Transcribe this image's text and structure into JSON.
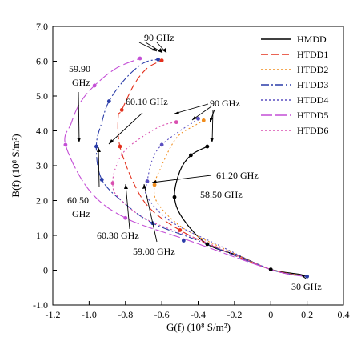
{
  "chart_data": {
    "type": "line",
    "xlabel": "G(f) (10⁸ S/m²)",
    "ylabel": "B(f) (10⁸ S/m²)",
    "xlim": [
      -1.2,
      0.4
    ],
    "ylim": [
      -1.0,
      7.0
    ],
    "xticks": [
      "-1.2",
      "-1.0",
      "-0.8",
      "-0.6",
      "-0.4",
      "-0.2",
      "0",
      "0.2",
      "0.4"
    ],
    "yticks": [
      "-1.0",
      "0",
      "1.0",
      "2.0",
      "3.0",
      "4.0",
      "5.0",
      "6.0",
      "7.0"
    ],
    "grid": false,
    "legend_position": "top-right",
    "series": [
      {
        "name": "HMDD",
        "color": "#000000",
        "dash": "solid",
        "points": [
          [
            0.2,
            -0.18
          ],
          [
            0.16,
            -0.12
          ],
          [
            0.0,
            0.02
          ],
          [
            -0.18,
            0.42
          ],
          [
            -0.35,
            0.75
          ],
          [
            -0.48,
            1.45
          ],
          [
            -0.53,
            2.1
          ],
          [
            -0.5,
            2.85
          ],
          [
            -0.44,
            3.3
          ],
          [
            -0.35,
            3.55
          ]
        ]
      },
      {
        "name": "HTDD1",
        "color": "#e3301c",
        "dash": "dashed",
        "points": [
          [
            0.2,
            -0.18
          ],
          [
            0.0,
            0.02
          ],
          [
            -0.3,
            0.65
          ],
          [
            -0.5,
            1.15
          ],
          [
            -0.66,
            1.75
          ],
          [
            -0.75,
            2.45
          ],
          [
            -0.83,
            3.55
          ],
          [
            -0.84,
            4.4
          ],
          [
            -0.82,
            4.6
          ],
          [
            -0.75,
            5.35
          ],
          [
            -0.68,
            5.8
          ],
          [
            -0.6,
            6.02
          ]
        ]
      },
      {
        "name": "HTDD2",
        "color": "#f08c1c",
        "dash": "dotted",
        "points": [
          [
            0.2,
            -0.17
          ],
          [
            0.0,
            0.02
          ],
          [
            -0.25,
            0.6
          ],
          [
            -0.48,
            1.2
          ],
          [
            -0.62,
            1.9
          ],
          [
            -0.64,
            2.45
          ],
          [
            -0.6,
            3.0
          ],
          [
            -0.55,
            3.55
          ],
          [
            -0.5,
            3.9
          ],
          [
            -0.42,
            4.15
          ],
          [
            -0.37,
            4.3
          ]
        ]
      },
      {
        "name": "HTDD3",
        "color": "#2a3ca8",
        "dash": "dashdot",
        "points": [
          [
            0.19,
            -0.18
          ],
          [
            0.0,
            0.02
          ],
          [
            -0.4,
            0.85
          ],
          [
            -0.65,
            1.35
          ],
          [
            -0.8,
            1.9
          ],
          [
            -0.93,
            2.6
          ],
          [
            -0.96,
            3.55
          ],
          [
            -0.93,
            4.25
          ],
          [
            -0.89,
            4.85
          ],
          [
            -0.8,
            5.5
          ],
          [
            -0.7,
            5.95
          ],
          [
            -0.62,
            6.05
          ]
        ]
      },
      {
        "name": "HTDD4",
        "color": "#5a4fc0",
        "dash": "dotted",
        "points": [
          [
            0.19,
            -0.17
          ],
          [
            0.0,
            0.02
          ],
          [
            -0.3,
            0.75
          ],
          [
            -0.55,
            1.4
          ],
          [
            -0.68,
            2.1
          ],
          [
            -0.68,
            2.55
          ],
          [
            -0.65,
            3.2
          ],
          [
            -0.6,
            3.6
          ],
          [
            -0.5,
            4.0
          ],
          [
            -0.44,
            4.2
          ],
          [
            -0.4,
            4.35
          ]
        ]
      },
      {
        "name": "HTDD5",
        "color": "#c44fd6",
        "dash": "longdash",
        "points": [
          [
            0.18,
            -0.18
          ],
          [
            0.0,
            0.02
          ],
          [
            -0.45,
            0.85
          ],
          [
            -0.8,
            1.5
          ],
          [
            -1.0,
            2.3
          ],
          [
            -1.13,
            3.6
          ],
          [
            -1.1,
            4.2
          ],
          [
            -1.05,
            4.8
          ],
          [
            -0.97,
            5.3
          ],
          [
            -0.85,
            5.8
          ],
          [
            -0.72,
            6.08
          ]
        ]
      },
      {
        "name": "HTDD6",
        "color": "#d94fb0",
        "dash": "dotted",
        "points": [
          [
            0.18,
            -0.17
          ],
          [
            0.0,
            0.02
          ],
          [
            -0.38,
            0.85
          ],
          [
            -0.68,
            1.45
          ],
          [
            -0.84,
            2.1
          ],
          [
            -0.87,
            2.5
          ],
          [
            -0.85,
            3.0
          ],
          [
            -0.8,
            3.45
          ],
          [
            -0.7,
            3.85
          ],
          [
            -0.6,
            4.15
          ],
          [
            -0.52,
            4.25
          ]
        ]
      }
    ],
    "markers": [
      {
        "x": -0.6,
        "y": 6.02,
        "color": "#e3301c"
      },
      {
        "x": -0.62,
        "y": 6.05,
        "color": "#2a3ca8"
      },
      {
        "x": -0.72,
        "y": 6.08,
        "color": "#c44fd6"
      },
      {
        "x": -0.35,
        "y": 3.55,
        "color": "#000000"
      },
      {
        "x": -0.37,
        "y": 4.3,
        "color": "#f08c1c"
      },
      {
        "x": -0.4,
        "y": 4.35,
        "color": "#5a4fc0"
      },
      {
        "x": -0.52,
        "y": 4.25,
        "color": "#d94fb0"
      },
      {
        "x": -0.83,
        "y": 3.55,
        "color": "#e3301c"
      },
      {
        "x": -0.96,
        "y": 3.55,
        "color": "#2a3ca8"
      },
      {
        "x": -1.13,
        "y": 3.6,
        "color": "#c44fd6"
      },
      {
        "x": -0.53,
        "y": 2.1,
        "color": "#000000"
      },
      {
        "x": -0.64,
        "y": 2.45,
        "color": "#f08c1c"
      },
      {
        "x": -0.68,
        "y": 2.55,
        "color": "#5a4fc0"
      },
      {
        "x": -0.87,
        "y": 2.5,
        "color": "#d94fb0"
      },
      {
        "x": -0.93,
        "y": 2.6,
        "color": "#2a3ca8"
      },
      {
        "x": -0.82,
        "y": 4.6,
        "color": "#e3301c"
      },
      {
        "x": -0.89,
        "y": 4.85,
        "color": "#2a3ca8"
      },
      {
        "x": -0.97,
        "y": 5.3,
        "color": "#c44fd6"
      },
      {
        "x": -0.6,
        "y": 3.6,
        "color": "#5a4fc0"
      },
      {
        "x": -0.44,
        "y": 3.3,
        "color": "#000000"
      },
      {
        "x": -0.35,
        "y": 0.75,
        "color": "#000000"
      },
      {
        "x": -0.48,
        "y": 0.85,
        "color": "#2a3ca8"
      },
      {
        "x": -0.5,
        "y": 1.15,
        "color": "#e3301c"
      },
      {
        "x": -0.65,
        "y": 1.35,
        "color": "#2a3ca8"
      },
      {
        "x": -0.8,
        "y": 1.5,
        "color": "#c44fd6"
      },
      {
        "x": 0.0,
        "y": 0.02,
        "color": "#000000"
      },
      {
        "x": 0.2,
        "y": -0.18,
        "color": "#2a3ca8"
      }
    ],
    "annotations": [
      {
        "text": "90 GHz"
      },
      {
        "text": "90 GHz"
      },
      {
        "text": "59.90"
      },
      {
        "text": "GHz"
      },
      {
        "text": "60.10 GHz"
      },
      {
        "text": "61.20 GHz"
      },
      {
        "text": "58.50 GHz"
      },
      {
        "text": "60.50"
      },
      {
        "text": "GHz"
      },
      {
        "text": "60.30 GHz"
      },
      {
        "text": "59.00 GHz"
      },
      {
        "text": "30 GHz"
      }
    ]
  }
}
